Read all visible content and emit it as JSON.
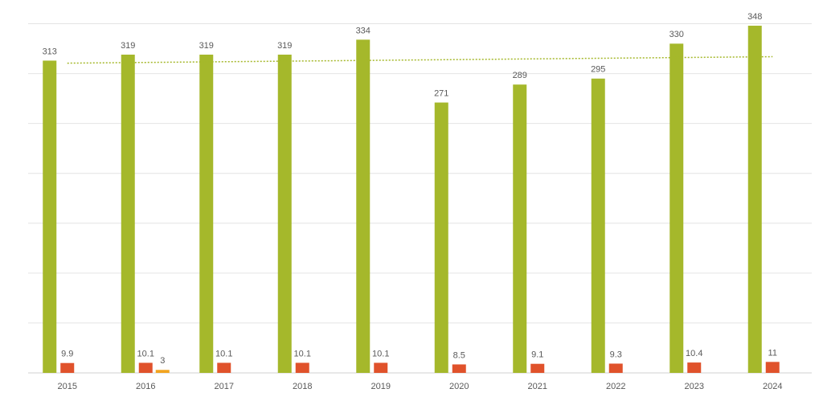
{
  "chart_data": {
    "type": "bar",
    "categories": [
      "2015",
      "2016",
      "2017",
      "2018",
      "2019",
      "2020",
      "2021",
      "2022",
      "2023",
      "2024"
    ],
    "series": [
      {
        "color": "#a5b82b",
        "values": [
          313,
          319,
          319,
          319,
          334,
          271,
          289,
          295,
          330,
          348
        ]
      },
      {
        "color": "#e0522b",
        "values": [
          9.9,
          10.1,
          10.1,
          10.1,
          10.1,
          8.5,
          9.1,
          9.3,
          10.4,
          11
        ]
      },
      {
        "color": "#f2a41f",
        "values": [
          null,
          3,
          null,
          null,
          null,
          null,
          null,
          null,
          null,
          null
        ]
      }
    ],
    "ylim": [
      0,
      350
    ],
    "yticks": [
      0,
      50,
      100,
      150,
      200,
      250,
      300,
      350
    ],
    "grid": true,
    "trendline_series": 0
  }
}
